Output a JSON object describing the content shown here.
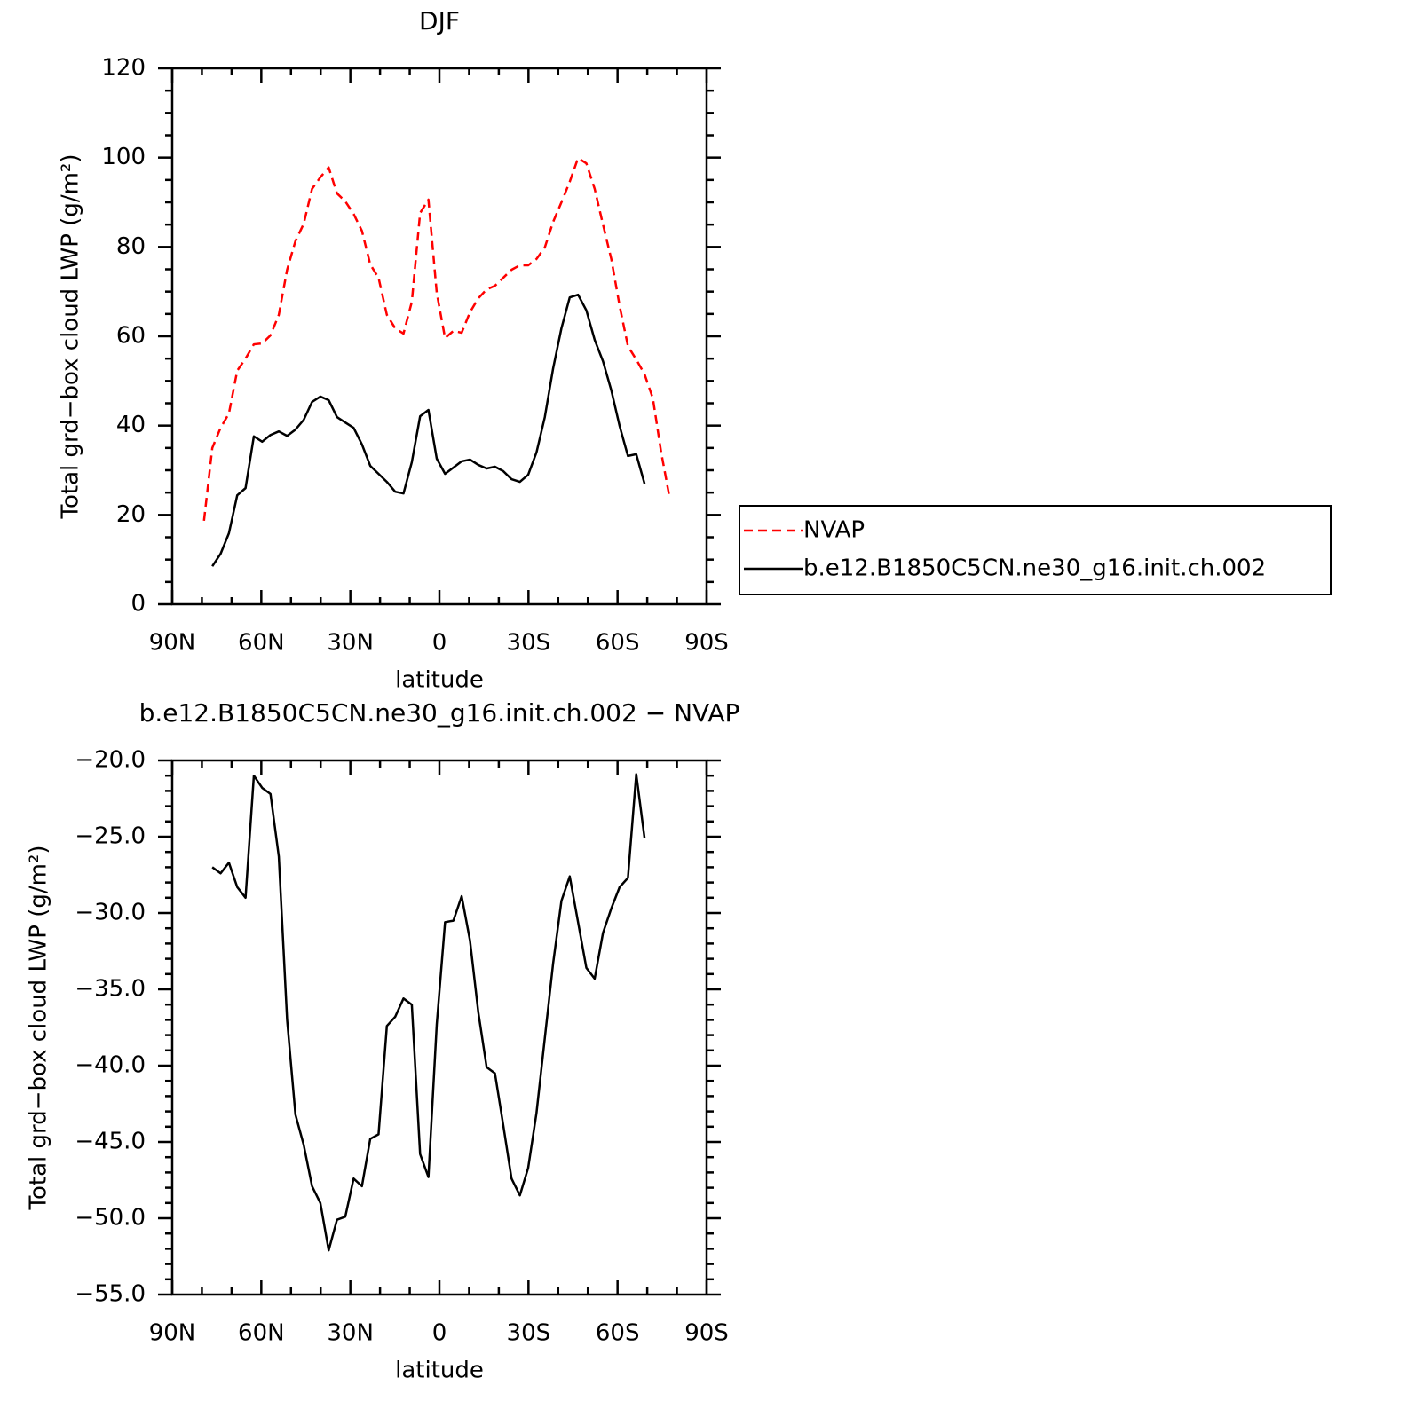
{
  "chart_data": [
    {
      "type": "line",
      "title": "DJF",
      "xlabel": "latitude",
      "ylabel": "Total grd−box cloud LWP (g/m²)",
      "xlim": [
        90,
        -90
      ],
      "xticks": [
        {
          "value": 90,
          "label": "90N"
        },
        {
          "value": 60,
          "label": "60N"
        },
        {
          "value": 30,
          "label": "30N"
        },
        0,
        {
          "value": -30,
          "label": "30S"
        },
        {
          "value": -60,
          "label": "60S"
        },
        {
          "value": -90,
          "label": "90S"
        }
      ],
      "x_minor_ticks": [
        80,
        70,
        50,
        40,
        20,
        10,
        -10,
        -20,
        -40,
        -50,
        -70,
        -80
      ],
      "ylim": [
        0,
        120
      ],
      "yticks": [
        0,
        20,
        40,
        60,
        80,
        100,
        120
      ],
      "y_minor_ticks": [
        5,
        10,
        15,
        25,
        30,
        35,
        45,
        50,
        55,
        65,
        70,
        75,
        85,
        90,
        95,
        105,
        110,
        115
      ],
      "legend": "right",
      "series": [
        {
          "name": "NVAP",
          "color": "#ff0000",
          "style": "dashed",
          "x": [
            79.3,
            76.5,
            73.7,
            70.9,
            68.1,
            65.3,
            62.5,
            59.7,
            56.9,
            54.1,
            51.3,
            48.5,
            45.7,
            42.9,
            40.1,
            37.3,
            34.5,
            31.7,
            28.9,
            26.1,
            23.3,
            20.5,
            17.7,
            14.9,
            12.1,
            9.3,
            6.5,
            3.7,
            0.9,
            -1.9,
            -4.7,
            -7.5,
            -10.3,
            -13.1,
            -15.9,
            -18.7,
            -21.5,
            -24.3,
            -27.1,
            -29.9,
            -32.7,
            -35.5,
            -38.3,
            -41.1,
            -43.9,
            -46.7,
            -49.5,
            -52.3,
            -55.1,
            -57.9,
            -60.7,
            -63.5,
            -66.3,
            -69.1,
            -71.9,
            -74.7,
            -77.5
          ],
          "values": [
            18.7,
            35.0,
            39.5,
            42.7,
            52.3,
            55.0,
            58.2,
            58.4,
            60.2,
            64.8,
            74.9,
            81.3,
            85.2,
            93.0,
            95.6,
            97.8,
            92.0,
            90.2,
            87.4,
            83.6,
            76.1,
            73.1,
            64.8,
            61.8,
            60.6,
            67.7,
            87.6,
            90.6,
            69.7,
            59.6,
            61.2,
            60.8,
            65.4,
            68.5,
            70.5,
            71.3,
            73.1,
            74.9,
            75.9,
            75.9,
            77.3,
            79.9,
            85.6,
            90.0,
            94.6,
            99.9,
            98.7,
            93.0,
            85.0,
            77.3,
            66.8,
            57.8,
            54.8,
            51.5,
            46.1,
            34.0,
            24.0
          ]
        },
        {
          "name": "b.e12.B1850C5CN.ne30_g16.init.ch.002",
          "color": "#000000",
          "style": "solid",
          "x": [
            76.5,
            73.7,
            70.9,
            68.1,
            65.3,
            62.5,
            59.7,
            56.9,
            54.1,
            51.3,
            48.5,
            45.7,
            42.9,
            40.1,
            37.3,
            34.5,
            31.7,
            28.9,
            26.1,
            23.3,
            20.5,
            17.7,
            14.9,
            12.1,
            9.3,
            6.5,
            3.7,
            0.9,
            -1.9,
            -4.7,
            -7.5,
            -10.3,
            -13.1,
            -15.9,
            -18.7,
            -21.5,
            -24.3,
            -27.1,
            -29.9,
            -32.7,
            -35.5,
            -38.3,
            -41.1,
            -43.9,
            -46.7,
            -49.5,
            -52.3,
            -55.1,
            -57.9,
            -60.7,
            -63.5,
            -66.3,
            -69.1
          ],
          "values": [
            8.5,
            11.3,
            15.9,
            24.4,
            26.0,
            37.6,
            36.4,
            37.9,
            38.7,
            37.7,
            39.1,
            41.3,
            45.3,
            46.5,
            45.7,
            41.9,
            40.7,
            39.5,
            35.8,
            31.0,
            29.2,
            27.4,
            25.2,
            24.8,
            31.8,
            42.1,
            43.5,
            32.6,
            29.2,
            30.6,
            32.0,
            32.4,
            31.2,
            30.4,
            30.8,
            29.8,
            28.0,
            27.4,
            29.0,
            34.0,
            41.9,
            52.8,
            61.8,
            68.7,
            69.3,
            65.8,
            59.2,
            54.4,
            47.9,
            39.9,
            33.2,
            33.6,
            27.0
          ]
        }
      ]
    },
    {
      "type": "line",
      "title": "b.e12.B1850C5CN.ne30_g16.init.ch.002 − NVAP",
      "xlabel": "latitude",
      "ylabel": "Total grd−box cloud LWP (g/m²)",
      "xlim": [
        90,
        -90
      ],
      "xticks": [
        {
          "value": 90,
          "label": "90N"
        },
        {
          "value": 60,
          "label": "60N"
        },
        {
          "value": 30,
          "label": "30N"
        },
        0,
        {
          "value": -30,
          "label": "30S"
        },
        {
          "value": -60,
          "label": "60S"
        },
        {
          "value": -90,
          "label": "90S"
        }
      ],
      "x_minor_ticks": [
        80,
        70,
        50,
        40,
        20,
        10,
        -10,
        -20,
        -40,
        -50,
        -70,
        -80
      ],
      "ylim": [
        -55,
        -20
      ],
      "yticks": [
        {
          "value": -20,
          "label": "−20.0"
        },
        {
          "value": -25,
          "label": "−25.0"
        },
        {
          "value": -30,
          "label": "−30.0"
        },
        {
          "value": -35,
          "label": "−35.0"
        },
        {
          "value": -40,
          "label": "−40.0"
        },
        {
          "value": -45,
          "label": "−45.0"
        },
        {
          "value": -50,
          "label": "−50.0"
        },
        {
          "value": -55,
          "label": "−55.0"
        }
      ],
      "y_minor_ticks": [
        -21,
        -22,
        -23,
        -24,
        -26,
        -27,
        -28,
        -29,
        -31,
        -32,
        -33,
        -34,
        -36,
        -37,
        -38,
        -39,
        -41,
        -42,
        -43,
        -44,
        -46,
        -47,
        -48,
        -49,
        -51,
        -52,
        -53,
        -54
      ],
      "series": [
        {
          "color": "#000000",
          "style": "solid",
          "x": [
            76.5,
            73.7,
            70.9,
            68.1,
            65.3,
            62.5,
            59.7,
            56.9,
            54.1,
            51.3,
            48.5,
            45.7,
            42.9,
            40.1,
            37.3,
            34.5,
            31.7,
            28.9,
            26.1,
            23.3,
            20.5,
            17.7,
            14.9,
            12.1,
            9.3,
            6.5,
            3.7,
            0.9,
            -1.9,
            -4.7,
            -7.5,
            -10.3,
            -13.1,
            -15.9,
            -18.7,
            -21.5,
            -24.3,
            -27.1,
            -29.9,
            -32.7,
            -35.5,
            -38.3,
            -41.1,
            -43.9,
            -46.7,
            -49.5,
            -52.3,
            -55.1,
            -57.9,
            -60.7,
            -63.5,
            -66.3,
            -69.1
          ],
          "values": [
            -27.0,
            -27.4,
            -26.7,
            -28.3,
            -29.0,
            -21.0,
            -21.8,
            -22.2,
            -26.3,
            -37.0,
            -43.2,
            -45.2,
            -47.9,
            -49.0,
            -52.1,
            -50.1,
            -49.9,
            -47.4,
            -47.9,
            -44.8,
            -44.5,
            -37.4,
            -36.8,
            -35.6,
            -36.0,
            -45.8,
            -47.3,
            -37.3,
            -30.6,
            -30.5,
            -28.9,
            -31.8,
            -36.5,
            -40.1,
            -40.5,
            -43.9,
            -47.4,
            -48.5,
            -46.7,
            -43.1,
            -38.2,
            -33.3,
            -29.2,
            -27.6,
            -30.6,
            -33.6,
            -34.3,
            -31.3,
            -29.7,
            -28.3,
            -27.7,
            -20.9,
            -25.1
          ]
        }
      ]
    }
  ]
}
